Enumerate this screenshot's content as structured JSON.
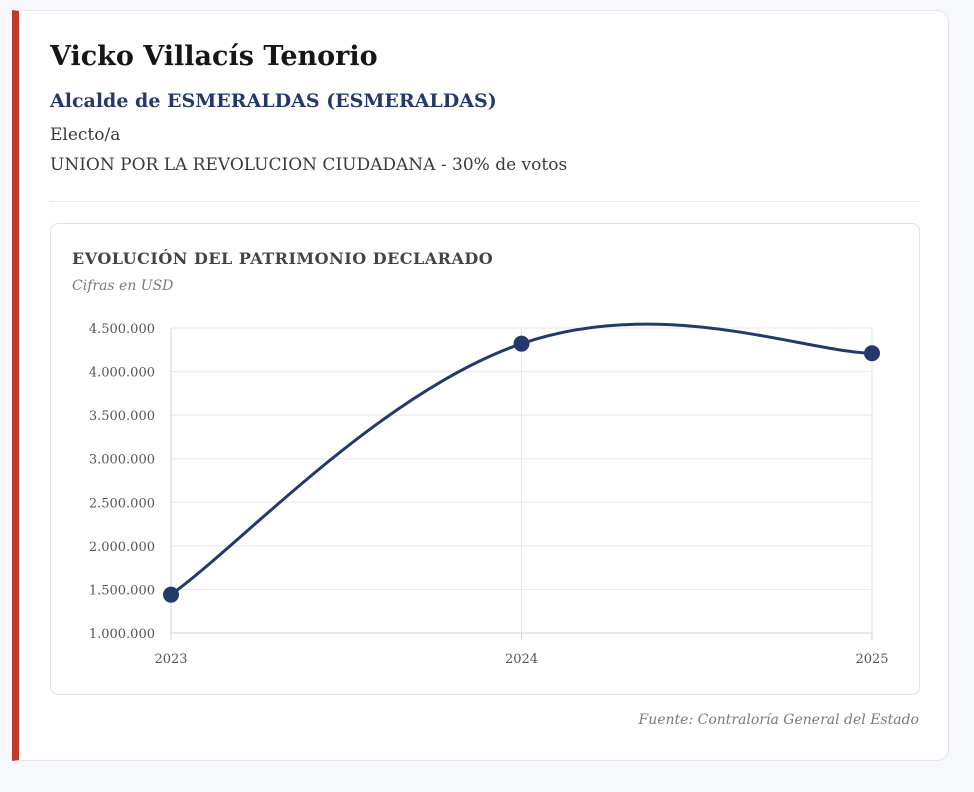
{
  "profile": {
    "name": "Vicko Villacís Tenorio",
    "role": "Alcalde de ESMERALDAS (ESMERALDAS)",
    "status": "Electo/a",
    "party": "UNION POR LA REVOLUCION CIUDADANA - 30% de votos"
  },
  "colors": {
    "accent_bar": "#c0392b",
    "role_text": "#24396b",
    "line": "#24396b"
  },
  "chart_data": {
    "type": "line",
    "title": "EVOLUCIÓN DEL PATRIMONIO DECLARADO",
    "subtitle": "Cifras en USD",
    "x": [
      "2023",
      "2024",
      "2025"
    ],
    "series": [
      {
        "values": [
          1440000,
          4320000,
          4210000
        ]
      }
    ],
    "ylim": [
      1000000,
      4500000
    ],
    "yticks": [
      1000000,
      1500000,
      2000000,
      2500000,
      3000000,
      3500000,
      4000000,
      4500000
    ],
    "ytick_labels": [
      "1.000.000",
      "1.500.000",
      "2.000.000",
      "2.500.000",
      "3.000.000",
      "3.500.000",
      "4.000.000",
      "4.500.000"
    ],
    "grid": true,
    "curve": "smooth"
  },
  "footer": {
    "source": "Fuente: Contraloría General del Estado"
  }
}
